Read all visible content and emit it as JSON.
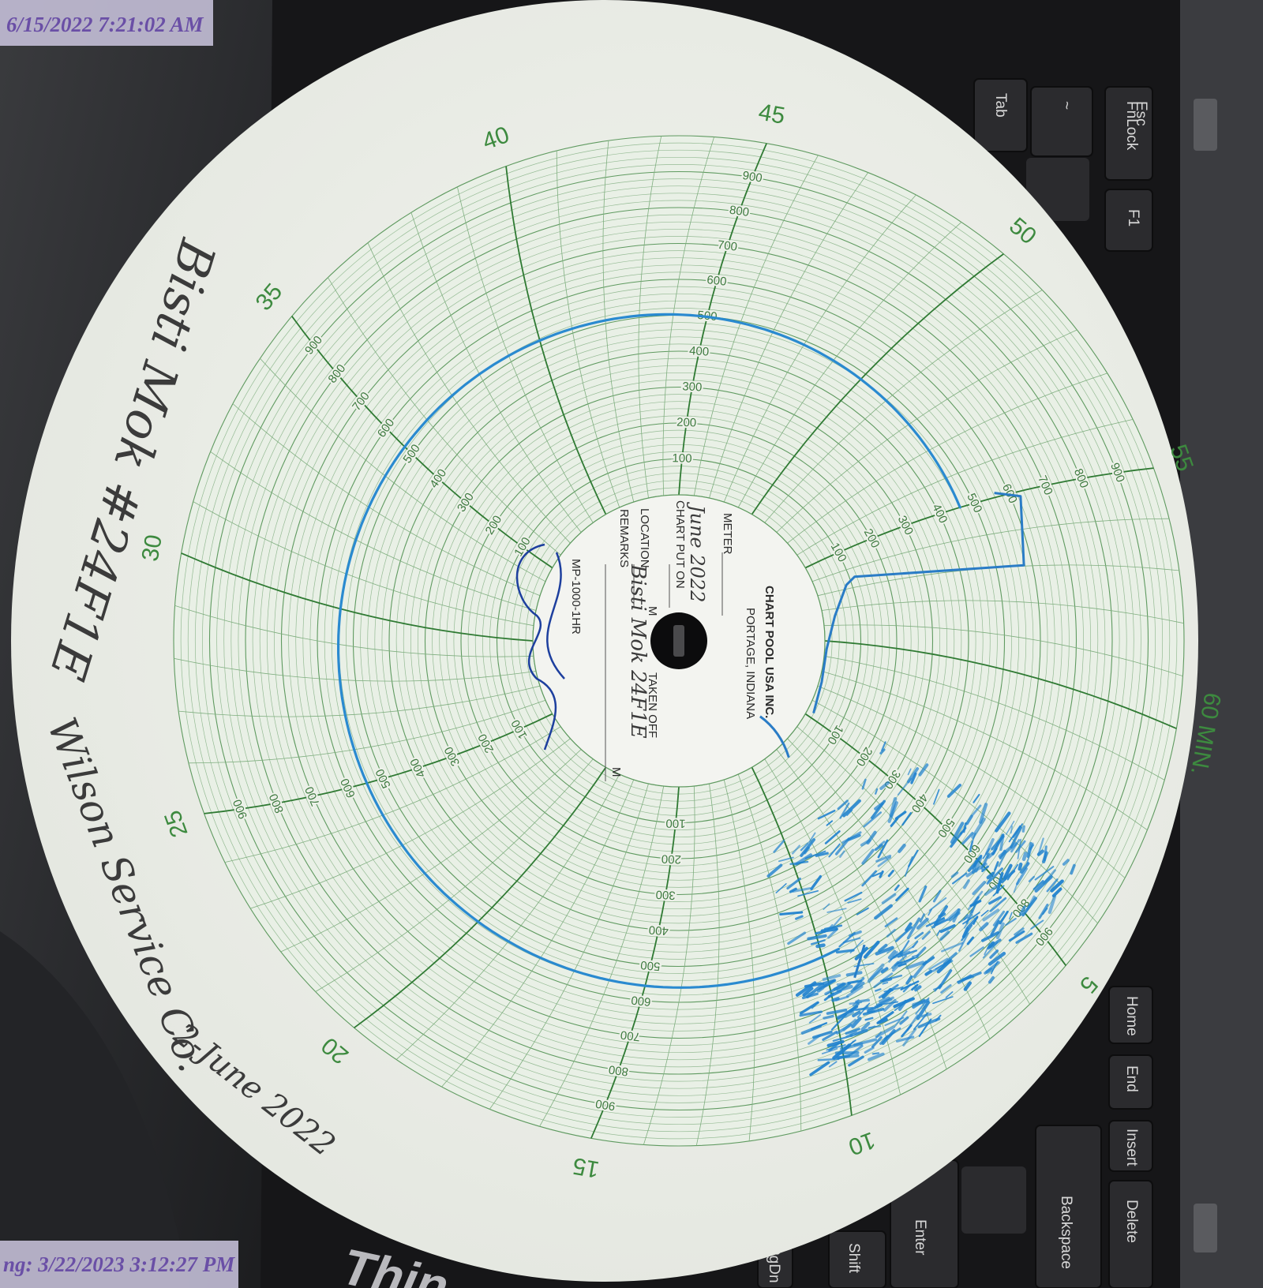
{
  "overlays": {
    "top_timestamp": "6/15/2022 7:21:02 AM",
    "bottom_timestamp": "ng: 3/22/2023 3:12:27 PM"
  },
  "chart_paper": {
    "header": [
      "CHART POOL USA INC.",
      "PORTAGE, INDIANA"
    ],
    "fields": {
      "meter": "METER",
      "put_on": "CHART PUT ON",
      "location": "LOCATION",
      "remarks": "REMARKS",
      "put_on_unit": "M",
      "taken_off": "TAKEN OFF",
      "taken_off_unit": "M"
    },
    "model": "MP-1000-1HR",
    "minute_labels": [
      "5",
      "10",
      "15",
      "20",
      "25",
      "30",
      "35",
      "40",
      "45",
      "50",
      "55",
      "60 MIN."
    ],
    "scale_labels": [
      "100",
      "200",
      "300",
      "400",
      "500",
      "600",
      "700",
      "800",
      "900"
    ]
  },
  "handwriting": {
    "well": "Bisti Mok #24F1E",
    "company": "Wilson Service Co.",
    "date": "2-June 2022",
    "hub_date": "June 2022",
    "hub_location": "Bisti Mok 24F1E"
  },
  "keyboard": {
    "keys": [
      "Tab",
      "~",
      "Esc",
      "FnLock",
      "F1",
      "Home",
      "End",
      "Insert",
      "Backspace",
      "Delete",
      "Enter",
      "Shift",
      "PgDn"
    ],
    "logo": "Thin"
  }
}
